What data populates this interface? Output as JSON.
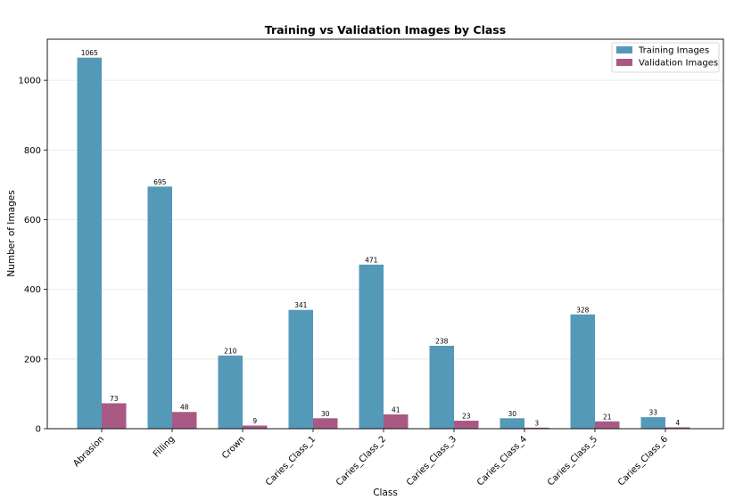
{
  "chart_data": {
    "type": "bar",
    "title": "Training vs Validation Images by Class",
    "xlabel": "Class",
    "ylabel": "Number of Images",
    "categories": [
      "Abrasion",
      "Filling",
      "Crown",
      "Caries_Class_1",
      "Caries_Class_2",
      "Caries_Class_3",
      "Caries_Class_4",
      "Caries_Class_5",
      "Caries_Class_6"
    ],
    "series": [
      {
        "name": "Training Images",
        "color": "#5499b8",
        "values": [
          1065,
          695,
          210,
          341,
          471,
          238,
          30,
          328,
          33
        ]
      },
      {
        "name": "Validation Images",
        "color": "#a85a85",
        "values": [
          73,
          48,
          9,
          30,
          41,
          23,
          3,
          21,
          4
        ]
      }
    ],
    "ylim": [
      0,
      1118
    ],
    "yticks": [
      0,
      200,
      400,
      600,
      800,
      1000
    ],
    "grid": "horizontal",
    "legend_position": "top-right"
  }
}
